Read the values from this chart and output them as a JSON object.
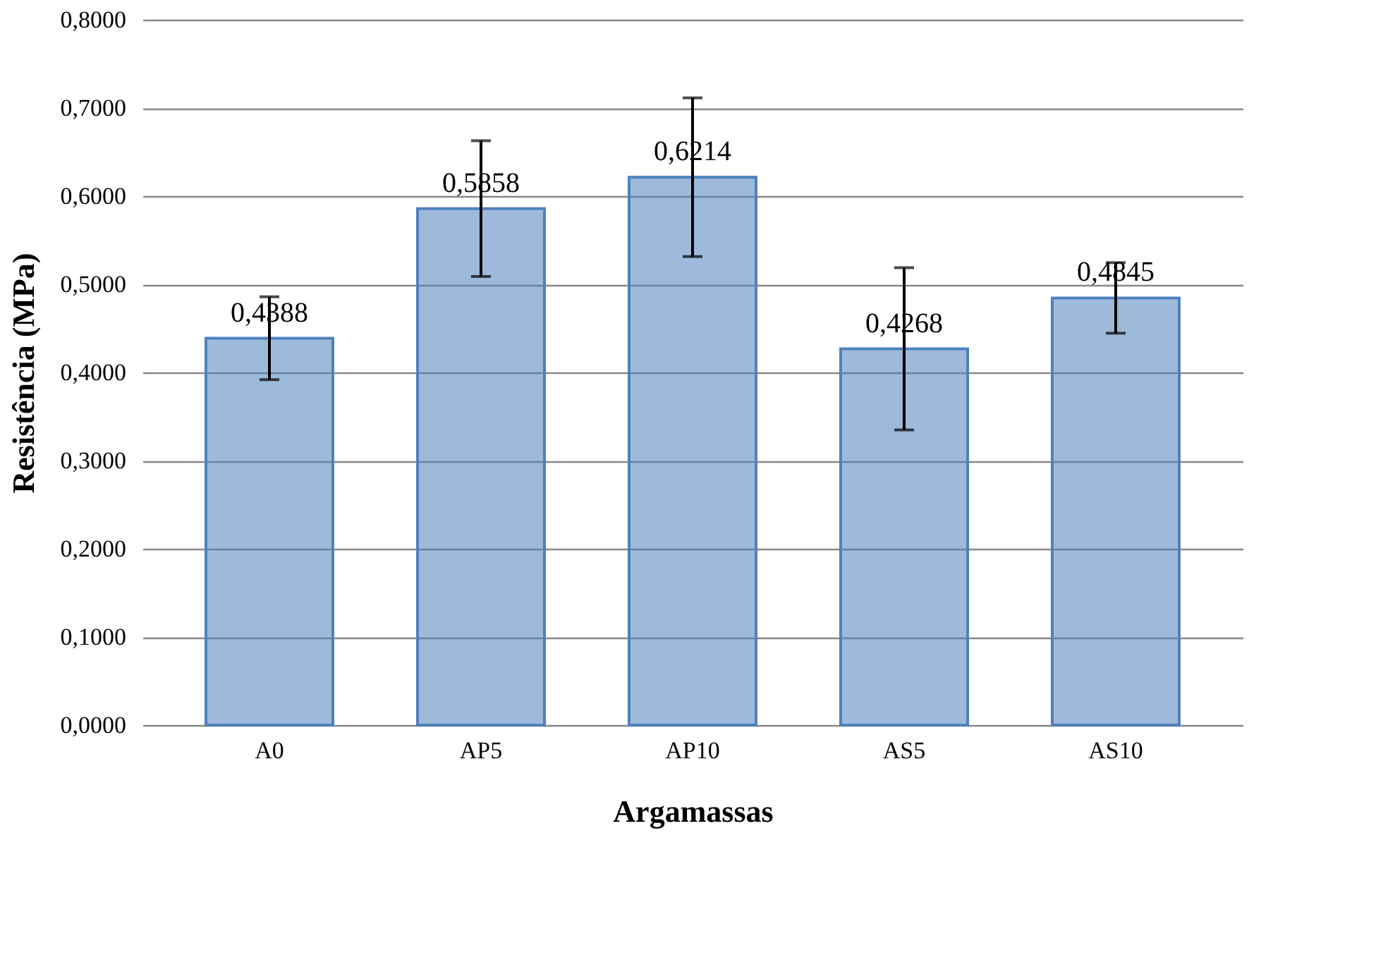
{
  "chart_data": {
    "type": "bar",
    "xlabel": "Argamassas",
    "ylabel": "Resistência  (MPa)",
    "categories": [
      "A0",
      "AP5",
      "AP10",
      "AS5",
      "AS10"
    ],
    "values": [
      0.4388,
      0.5858,
      0.6214,
      0.4268,
      0.4845
    ],
    "value_labels": [
      "0,4388",
      "0,5858",
      "0,6214",
      "0,4268",
      "0,4845"
    ],
    "errors": [
      0.047,
      0.077,
      0.09,
      0.092,
      0.04
    ],
    "color": "#4f81bd",
    "ylim": [
      0,
      0.8
    ],
    "yticks": [
      {
        "value": 0,
        "label": "0,0000"
      },
      {
        "value": 0.1,
        "label": "0,1000"
      },
      {
        "value": 0.2,
        "label": "0,2000"
      },
      {
        "value": 0.3,
        "label": "0,3000"
      },
      {
        "value": 0.4,
        "label": "0,4000"
      },
      {
        "value": 0.5,
        "label": "0,5000"
      },
      {
        "value": 0.6,
        "label": "0,6000"
      },
      {
        "value": 0.7,
        "label": "0,7000"
      },
      {
        "value": 0.8,
        "label": "0,8000"
      }
    ],
    "grid": "y"
  }
}
